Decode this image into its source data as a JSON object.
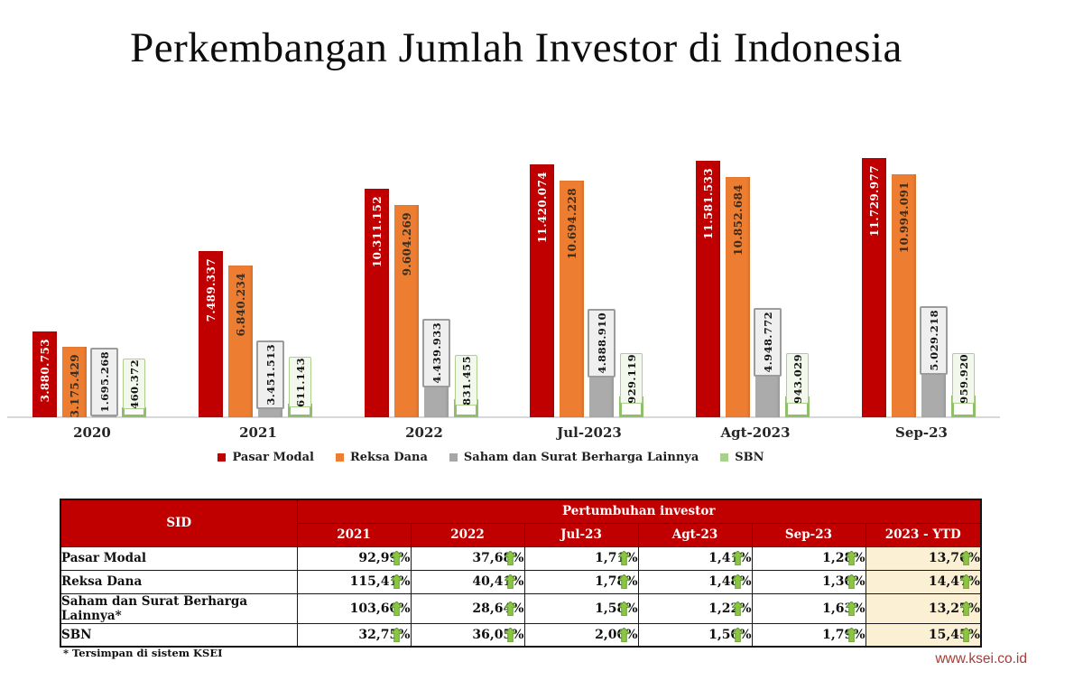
{
  "title": "Perkembangan Jumlah Investor di Indonesia",
  "colors": {
    "pasar_modal_red": "#c00000",
    "reksa_dana_orange": "#ed7d31",
    "saham_gray": "#ababab",
    "sbn_green_border": "#8fbf69",
    "sbn_legend_green": "#a9d18e",
    "table_header_red": "#c00000",
    "ytd_highlight": "#fbf0d3",
    "arrow_green_fill": "#8cc63f",
    "arrow_green_stroke": "#61953b",
    "bar_label_on_red": "#ffffff",
    "bar_label_on_orange": "#3a2c1e"
  },
  "chart_data": {
    "type": "bar",
    "title": "Perkembangan Jumlah Investor di Indonesia",
    "xlabel": "",
    "ylabel": "",
    "grid": false,
    "legend_position": "bottom",
    "ylim": [
      0,
      12000000
    ],
    "categories": [
      "2020",
      "2021",
      "2022",
      "Jul-2023",
      "Agt-2023",
      "Sep-23"
    ],
    "series": [
      {
        "name": "Pasar Modal",
        "style": "pm",
        "color": "#c00000",
        "values": [
          3880753,
          7489337,
          10311152,
          11420074,
          11581533,
          11729977
        ],
        "labels": [
          "3.880.753",
          "7.489.337",
          "10.311.152",
          "11.420.074",
          "11.581.533",
          "11.729.977"
        ]
      },
      {
        "name": "Reksa Dana",
        "style": "rd",
        "color": "#ed7d31",
        "values": [
          3175429,
          6840234,
          9604269,
          10694228,
          10852684,
          10994091
        ],
        "labels": [
          "3.175.429",
          "6.840.234",
          "9.604.269",
          "10.694.228",
          "10.852.684",
          "10.994.091"
        ]
      },
      {
        "name": "Saham dan Surat Berharga Lainnya",
        "style": "shm",
        "color": "#ababab",
        "values": [
          1695268,
          3451513,
          4439933,
          4888910,
          4948772,
          5029218
        ],
        "labels": [
          "1.695.268",
          "3.451.513",
          "4.439.933",
          "4.888.910",
          "4.948.772",
          "5.029.218"
        ]
      },
      {
        "name": "SBN",
        "style": "sbn",
        "color": "#8fbf69",
        "values": [
          460372,
          611143,
          831455,
          929119,
          943029,
          959920
        ],
        "labels": [
          "460.372",
          "611.143",
          "831.455",
          "929.119",
          "943.029",
          "959.920"
        ]
      }
    ]
  },
  "legend": {
    "items": [
      {
        "label": "Pasar Modal",
        "color": "#c00000"
      },
      {
        "label": "Reksa Dana",
        "color": "#ed7d31"
      },
      {
        "label": "Saham dan Surat Berharga Lainnya",
        "color": "#a6a6a6"
      },
      {
        "label": "SBN",
        "color": "#a9d18e"
      }
    ]
  },
  "table": {
    "sid_header": "SID",
    "group_header": "Pertumbuhan investor",
    "col_headers": [
      "2021",
      "2022",
      "Jul-23",
      "Agt-23",
      "Sep-23",
      "2023 - YTD"
    ],
    "rows": [
      {
        "label": "Pasar Modal",
        "values": [
          "92,99%",
          "37,68%",
          "1,71%",
          "1,41%",
          "1,28%",
          "13,76%"
        ]
      },
      {
        "label": "Reksa Dana",
        "values": [
          "115,41%",
          "40,41%",
          "1,78%",
          "1,48%",
          "1,30%",
          "14,47%"
        ]
      },
      {
        "label": "Saham dan Surat Berharga Lainnya*",
        "values": [
          "103,60%",
          "28,64%",
          "1,58%",
          "1,22%",
          "1,63%",
          "13,27%"
        ]
      },
      {
        "label": "SBN",
        "values": [
          "32,75%",
          "36,05%",
          "2,00%",
          "1,50%",
          "1,79%",
          "15,45%"
        ]
      }
    ]
  },
  "footnote": "* Tersimpan di sistem KSEI",
  "website": "www.ksei.co.id"
}
